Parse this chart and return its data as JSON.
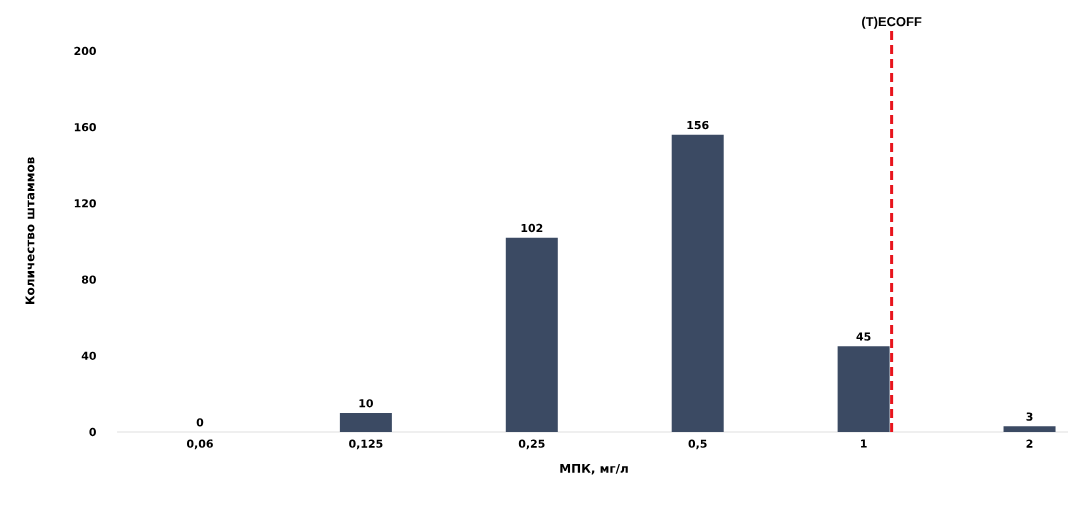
{
  "chart_data": {
    "type": "bar",
    "xlabel": "МПК, мг/л",
    "ylabel": "Количество штаммов",
    "categories": [
      "0,06",
      "0,125",
      "0,25",
      "0,5",
      "1",
      "2"
    ],
    "values": [
      0,
      10,
      102,
      156,
      45,
      3
    ],
    "color": "#3b4a63",
    "ylim": [
      0,
      211
    ],
    "yticks": [
      0,
      40,
      80,
      120,
      160,
      200
    ],
    "data_labels": true,
    "ref_lines": [
      {
        "axis": "x",
        "value": "1",
        "label": "(T)ECOFF",
        "color": "#e8141c",
        "line_style": "dashed"
      }
    ]
  }
}
